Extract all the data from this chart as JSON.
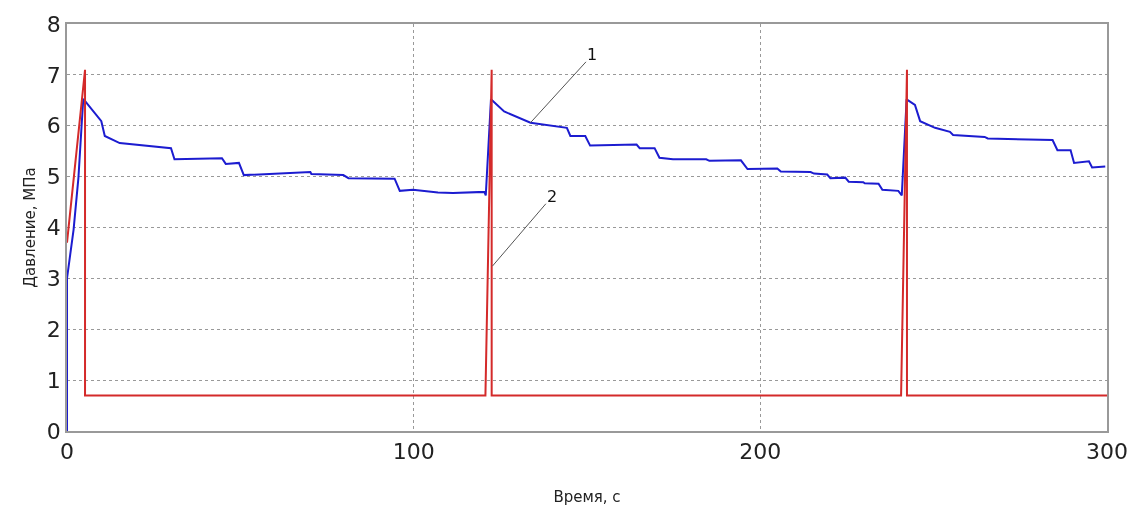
{
  "chart_data": {
    "type": "line",
    "xlabel": "Время, с",
    "ylabel": "Давление, МПа",
    "xlim": [
      0,
      300
    ],
    "xticks": [
      0,
      100,
      200,
      300
    ],
    "ylim": [
      0,
      8
    ],
    "yticks": [
      0,
      1,
      2,
      3,
      4,
      5,
      6,
      7,
      8
    ],
    "grid": true,
    "line_style": "solid",
    "marker": "none",
    "series": [
      {
        "color": "#1c1cd0",
        "x": [
          0,
          0,
          1.9,
          3.3,
          4.2,
          4.7,
          9.9,
          10.9,
          15.2,
          30.0,
          31,
          44.7,
          45.8,
          49.6,
          51,
          70.2,
          70.5,
          79.7,
          81.2,
          94.5,
          96,
          99.8,
          107,
          111.3,
          120.4,
          120.8,
          122.3,
          126.1,
          133.7,
          144.2,
          145.2,
          149.5,
          150.9,
          164.3,
          165.2,
          169.5,
          170.9,
          174.8,
          184.4,
          185.3,
          194.4,
          196.3,
          204.9,
          205.9,
          214.5,
          215.5,
          219.3,
          220.2,
          224.5,
          225.5,
          229.7,
          230.1,
          234.1,
          235.2,
          239.8,
          240.8,
          242.2,
          244.6,
          246.1,
          250.4,
          254.7,
          255.6,
          264.7,
          265.6,
          284.3,
          285.7,
          289.5,
          290.5,
          294.8,
          295.7,
          299.5
        ],
        "values": [
          0,
          3.0,
          3.96,
          4.98,
          5.99,
          6.53,
          6.09,
          5.8,
          5.66,
          5.56,
          5.34,
          5.36,
          5.25,
          5.27,
          5.03,
          5.09,
          5.05,
          5.03,
          4.97,
          4.96,
          4.72,
          4.74,
          4.69,
          4.68,
          4.7,
          4.63,
          6.52,
          6.28,
          6.06,
          5.96,
          5.8,
          5.8,
          5.61,
          5.63,
          5.56,
          5.56,
          5.37,
          5.34,
          5.34,
          5.31,
          5.32,
          5.15,
          5.16,
          5.1,
          5.09,
          5.06,
          5.04,
          4.97,
          4.98,
          4.9,
          4.89,
          4.87,
          4.86,
          4.74,
          4.72,
          4.63,
          6.52,
          6.41,
          6.09,
          5.96,
          5.88,
          5.82,
          5.78,
          5.75,
          5.72,
          5.52,
          5.52,
          5.27,
          5.3,
          5.18,
          5.2
        ]
      },
      {
        "color": "#d42a2a",
        "x": [
          0,
          5.2,
          5.2,
          120.7,
          122.5,
          122.5,
          240.6,
          242.3,
          242.3,
          300
        ],
        "values": [
          3.7,
          7.1,
          0.7,
          0.7,
          7.1,
          0.7,
          0.7,
          7.1,
          0.7,
          0.7
        ]
      }
    ],
    "annotations": [
      {
        "text": "1",
        "x": 133.7,
        "y": 6.06
      },
      {
        "text": "2",
        "x": 122.7,
        "y": 3.24
      }
    ]
  }
}
